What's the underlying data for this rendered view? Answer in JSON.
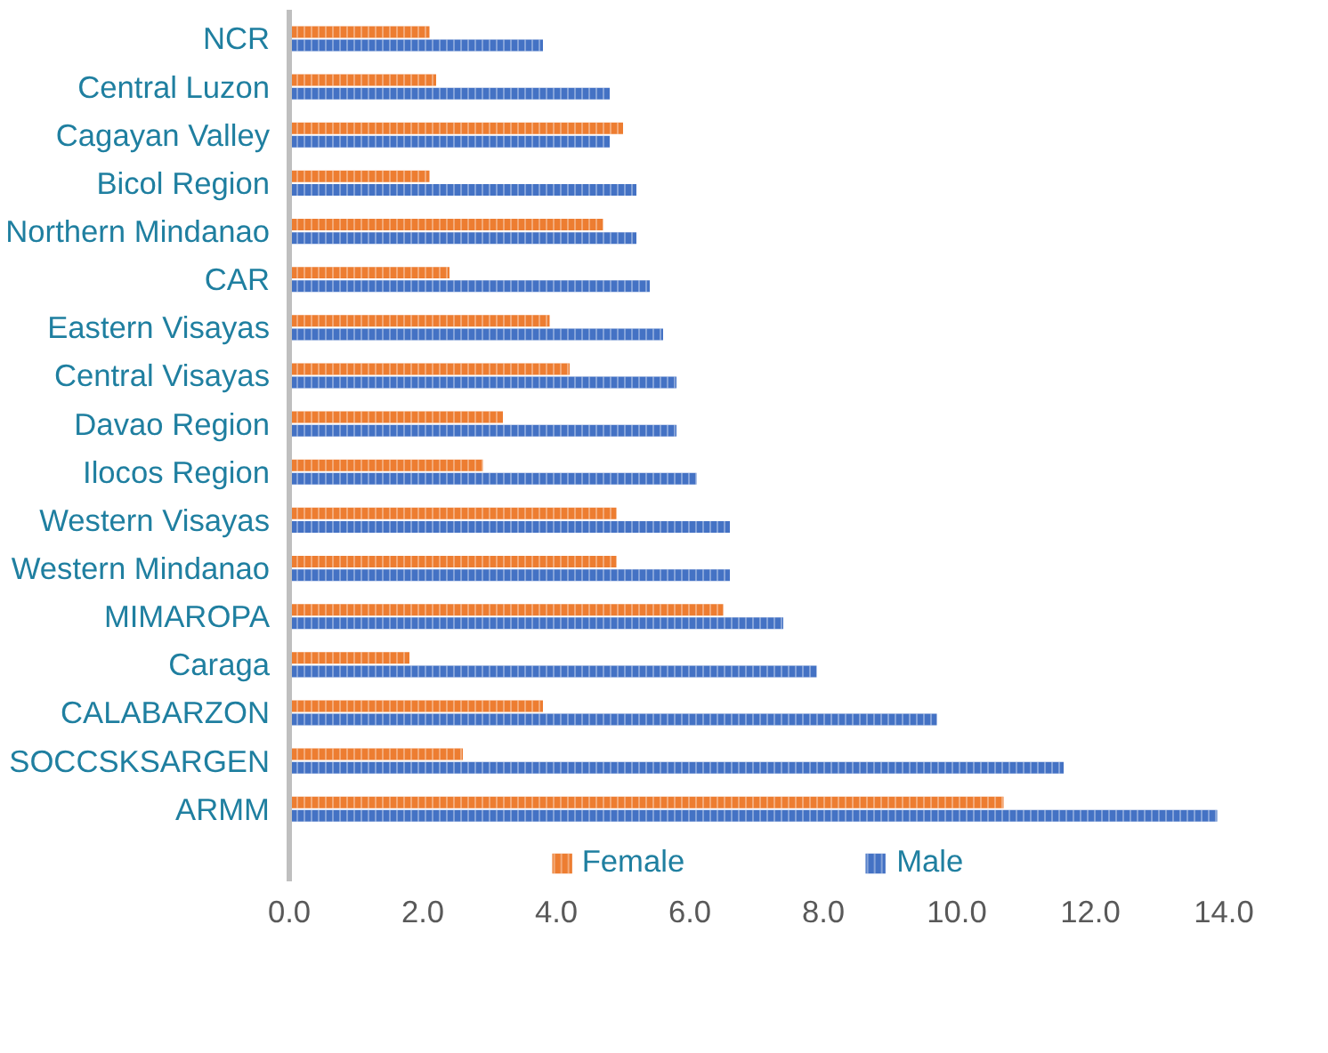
{
  "chart_data": {
    "type": "bar",
    "orientation": "horizontal",
    "categories": [
      "NCR",
      "Central Luzon",
      "Cagayan Valley",
      "Bicol Region",
      "Northern Mindanao",
      "CAR",
      "Eastern Visayas",
      "Central Visayas",
      "Davao Region",
      "Ilocos Region",
      "Western Visayas",
      "Western Mindanao",
      "MIMAROPA",
      "Caraga",
      "CALABARZON",
      "SOCCSKSARGEN",
      "ARMM"
    ],
    "series": [
      {
        "name": "Female",
        "color": "#ed7d31",
        "values": [
          2.1,
          2.2,
          5.0,
          2.1,
          4.7,
          2.4,
          3.9,
          4.2,
          3.2,
          2.9,
          4.9,
          4.9,
          6.5,
          1.8,
          3.8,
          2.6,
          10.7
        ]
      },
      {
        "name": "Male",
        "color": "#4472c4",
        "values": [
          3.8,
          4.8,
          4.8,
          5.2,
          5.2,
          5.4,
          5.6,
          5.8,
          5.8,
          6.1,
          6.6,
          6.6,
          7.4,
          7.9,
          9.7,
          11.6,
          13.9
        ]
      }
    ],
    "xlim": [
      0,
      14
    ],
    "xticks": [
      {
        "value": 0,
        "label": "0.0"
      },
      {
        "value": 2,
        "label": "2.0"
      },
      {
        "value": 4,
        "label": "4.0"
      },
      {
        "value": 6,
        "label": "6.0"
      },
      {
        "value": 8,
        "label": "8.0"
      },
      {
        "value": 10,
        "label": "10.0"
      },
      {
        "value": 12,
        "label": "12.0"
      },
      {
        "value": 14,
        "label": "14.0"
      }
    ],
    "grid": false,
    "legend": "bottom"
  }
}
